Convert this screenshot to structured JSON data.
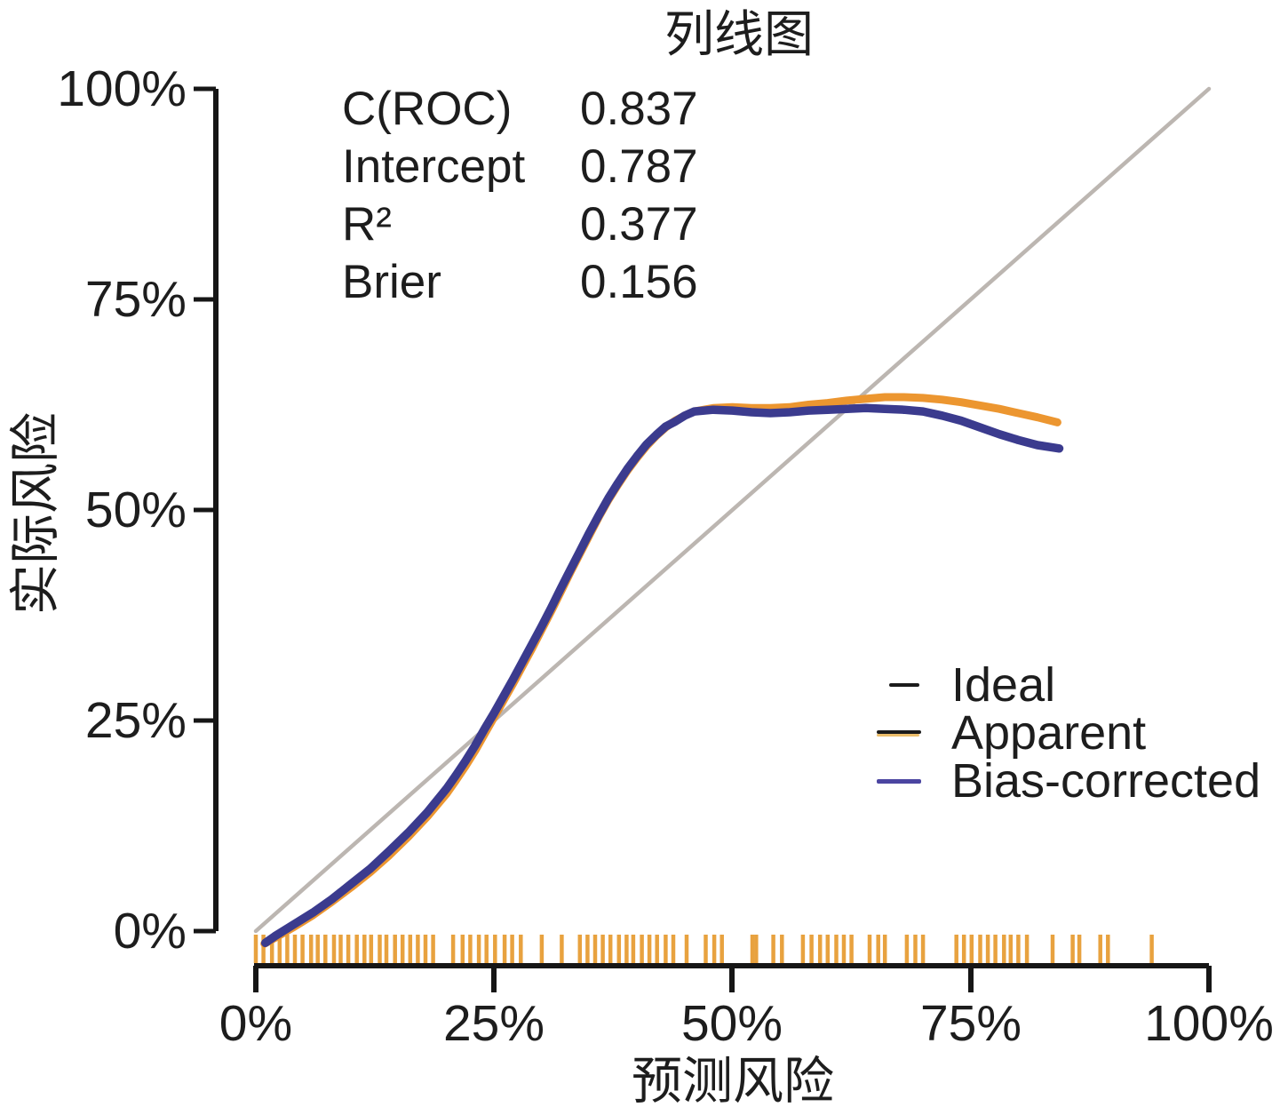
{
  "title": "列线图",
  "stats": {
    "rows": [
      {
        "label": "C(ROC)",
        "value": "0.837"
      },
      {
        "label": "Intercept",
        "value": "0.787"
      },
      {
        "label": "R²",
        "value": "0.377"
      },
      {
        "label": "Brier",
        "value": "0.156"
      }
    ]
  },
  "legend": {
    "items": [
      {
        "label": "Ideal"
      },
      {
        "label": "Apparent"
      },
      {
        "label": "Bias-corrected"
      }
    ]
  },
  "colors": {
    "axis": "#161616",
    "text": "#1d1d1d",
    "ideal_line": "#bcb6b1",
    "apparent_line": "#ec9630",
    "bias_line": "#3b3b8e",
    "rug": "#e8a23f",
    "legend_ideal_swatch": "#1b1b1b",
    "legend_apparent_swatch_top": "#1b1b1b",
    "legend_apparent_swatch_under": "#ecbe6b",
    "legend_bias_swatch": "#4b45a1"
  },
  "chart_data": {
    "type": "line",
    "title": "列线图",
    "xlabel": "预测风险",
    "ylabel": "实际风险",
    "xlim": [
      0,
      100
    ],
    "ylim": [
      0,
      100
    ],
    "x_ticks": [
      "0%",
      "25%",
      "50%",
      "75%",
      "100%"
    ],
    "y_ticks": [
      "0%",
      "25%",
      "50%",
      "75%",
      "100%"
    ],
    "grid": false,
    "legend_position": "lower right",
    "annotations": [
      {
        "label": "C(ROC)",
        "value": 0.837
      },
      {
        "label": "Intercept",
        "value": 0.787
      },
      {
        "label": "R²",
        "value": 0.377
      },
      {
        "label": "Brier",
        "value": 0.156
      }
    ],
    "series": [
      {
        "name": "Ideal",
        "color": "#bcb6b1",
        "width": 4.5,
        "points": [
          [
            0,
            0
          ],
          [
            100,
            100
          ]
        ]
      },
      {
        "name": "Apparent",
        "color": "#ec9630",
        "width": 9,
        "points": [
          [
            0.9,
            -1.5
          ],
          [
            2,
            -0.8
          ],
          [
            4,
            0.5
          ],
          [
            6,
            1.9
          ],
          [
            8,
            3.5
          ],
          [
            10,
            5.2
          ],
          [
            12,
            7.0
          ],
          [
            14,
            9.0
          ],
          [
            16,
            11.2
          ],
          [
            18,
            13.6
          ],
          [
            20,
            16.3
          ],
          [
            21,
            17.9
          ],
          [
            22,
            19.6
          ],
          [
            23,
            21.4
          ],
          [
            24,
            23.4
          ],
          [
            25,
            25.4
          ],
          [
            26,
            27.4
          ],
          [
            27,
            29.4
          ],
          [
            28,
            31.5
          ],
          [
            29,
            33.6
          ],
          [
            30,
            35.8
          ],
          [
            31,
            38.0
          ],
          [
            32,
            40.3
          ],
          [
            33,
            42.6
          ],
          [
            34,
            44.8
          ],
          [
            35,
            47.0
          ],
          [
            36,
            49.2
          ],
          [
            37,
            51.2
          ],
          [
            38,
            53.0
          ],
          [
            39,
            54.7
          ],
          [
            40,
            56.2
          ],
          [
            41,
            57.6
          ],
          [
            42,
            58.8
          ],
          [
            43,
            59.8
          ],
          [
            44,
            60.6
          ],
          [
            45,
            61.2
          ],
          [
            46,
            61.7
          ],
          [
            48,
            62.1
          ],
          [
            50,
            62.2
          ],
          [
            52,
            62.1
          ],
          [
            54,
            62.1
          ],
          [
            56,
            62.2
          ],
          [
            58,
            62.5
          ],
          [
            60,
            62.7
          ],
          [
            62,
            63.0
          ],
          [
            64,
            63.2
          ],
          [
            66,
            63.4
          ],
          [
            68,
            63.4
          ],
          [
            70,
            63.3
          ],
          [
            72,
            63.1
          ],
          [
            74,
            62.8
          ],
          [
            76,
            62.4
          ],
          [
            78,
            62.0
          ],
          [
            80,
            61.5
          ],
          [
            82,
            61.0
          ],
          [
            84.1,
            60.4
          ]
        ]
      },
      {
        "name": "Bias-corrected",
        "color": "#3b3b8e",
        "width": 9.5,
        "points": [
          [
            1.0,
            -1.4
          ],
          [
            2,
            -0.6
          ],
          [
            4,
            0.8
          ],
          [
            6,
            2.2
          ],
          [
            8,
            3.8
          ],
          [
            10,
            5.6
          ],
          [
            12,
            7.4
          ],
          [
            14,
            9.5
          ],
          [
            16,
            11.7
          ],
          [
            18,
            14.1
          ],
          [
            20,
            16.9
          ],
          [
            21,
            18.5
          ],
          [
            22,
            20.2
          ],
          [
            23,
            22.0
          ],
          [
            24,
            24.0
          ],
          [
            25,
            25.9
          ],
          [
            26,
            27.9
          ],
          [
            27,
            29.9
          ],
          [
            28,
            32.0
          ],
          [
            29,
            34.1
          ],
          [
            30,
            36.2
          ],
          [
            31,
            38.4
          ],
          [
            32,
            40.7
          ],
          [
            33,
            42.9
          ],
          [
            34,
            45.1
          ],
          [
            35,
            47.3
          ],
          [
            36,
            49.4
          ],
          [
            37,
            51.4
          ],
          [
            38,
            53.2
          ],
          [
            39,
            54.9
          ],
          [
            40,
            56.4
          ],
          [
            41,
            57.8
          ],
          [
            42,
            58.9
          ],
          [
            43,
            59.9
          ],
          [
            44,
            60.5
          ],
          [
            45,
            61.2
          ],
          [
            46,
            61.7
          ],
          [
            48,
            61.9
          ],
          [
            50,
            61.8
          ],
          [
            52,
            61.6
          ],
          [
            54,
            61.5
          ],
          [
            56,
            61.6
          ],
          [
            58,
            61.8
          ],
          [
            60,
            61.9
          ],
          [
            62,
            62.0
          ],
          [
            64,
            62.1
          ],
          [
            66,
            62.0
          ],
          [
            68,
            61.9
          ],
          [
            70,
            61.7
          ],
          [
            72,
            61.2
          ],
          [
            74,
            60.6
          ],
          [
            76,
            59.8
          ],
          [
            78,
            59.0
          ],
          [
            80,
            58.3
          ],
          [
            82,
            57.7
          ],
          [
            84.3,
            57.3
          ]
        ]
      }
    ],
    "rug": {
      "color": "#e8a23f",
      "x": [
        0,
        0.8,
        1.7,
        2.5,
        3.3,
        4.1,
        4.9,
        5.8,
        6.5,
        7.3,
        8.2,
        8.9,
        9.7,
        10.6,
        11.4,
        12.1,
        13,
        13.7,
        14.6,
        15.4,
        16.2,
        17,
        17.8,
        18.6,
        20.7,
        21.7,
        22.5,
        23.4,
        24.2,
        25.1,
        26.1,
        26.9,
        27.8,
        30,
        32.1,
        34,
        34.8,
        35.6,
        36.4,
        37.2,
        38.1,
        38.9,
        39.6,
        40.5,
        41.3,
        42.1,
        43,
        43.8,
        45.2,
        47.2,
        48.1,
        48.9,
        52.1,
        52.5,
        54.3,
        55.2,
        57.4,
        58.3,
        59.2,
        60,
        60.9,
        61.7,
        62.5,
        64.4,
        65.3,
        66,
        68.3,
        69.2,
        70,
        73.5,
        74.3,
        75.1,
        76,
        76.8,
        77.6,
        78.5,
        79.2,
        80,
        80.9,
        83.6,
        85.7,
        86.4,
        88.6,
        89.4,
        94
      ]
    }
  }
}
